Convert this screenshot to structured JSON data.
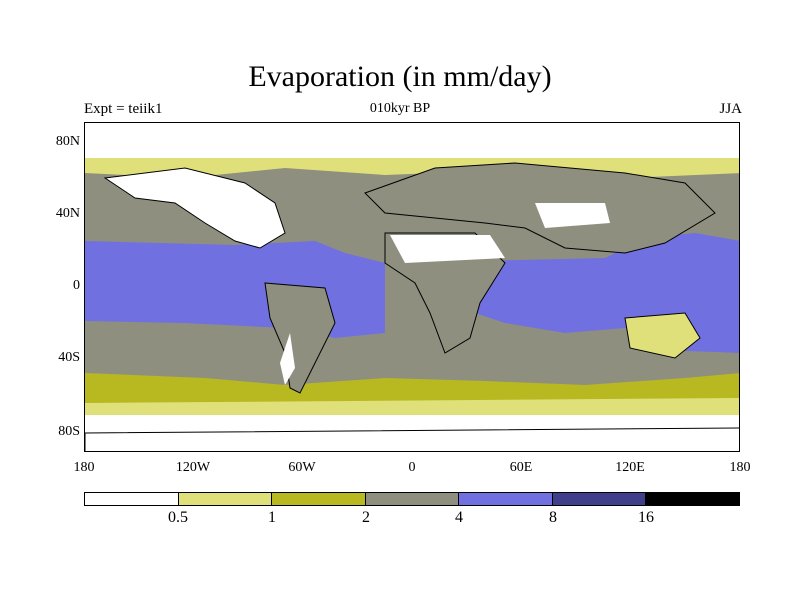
{
  "title": "Evaporation (in mm/day)",
  "subtitle": "010kyr BP",
  "left_label": "Expt = teiik1",
  "right_label": "JJA",
  "map": {
    "lat_ticks": [
      "80N",
      "40N",
      "0",
      "40S",
      "80S"
    ],
    "lon_ticks": [
      "180",
      "120W",
      "60W",
      "0",
      "60E",
      "120E",
      "180"
    ]
  },
  "colorbar": {
    "levels": [
      "0.5",
      "1",
      "2",
      "4",
      "8",
      "16"
    ],
    "colors": [
      "#ffffff",
      "#e0e07a",
      "#b8b820",
      "#8f8f80",
      "#7070e0",
      "#40408a",
      "#000000"
    ]
  }
}
